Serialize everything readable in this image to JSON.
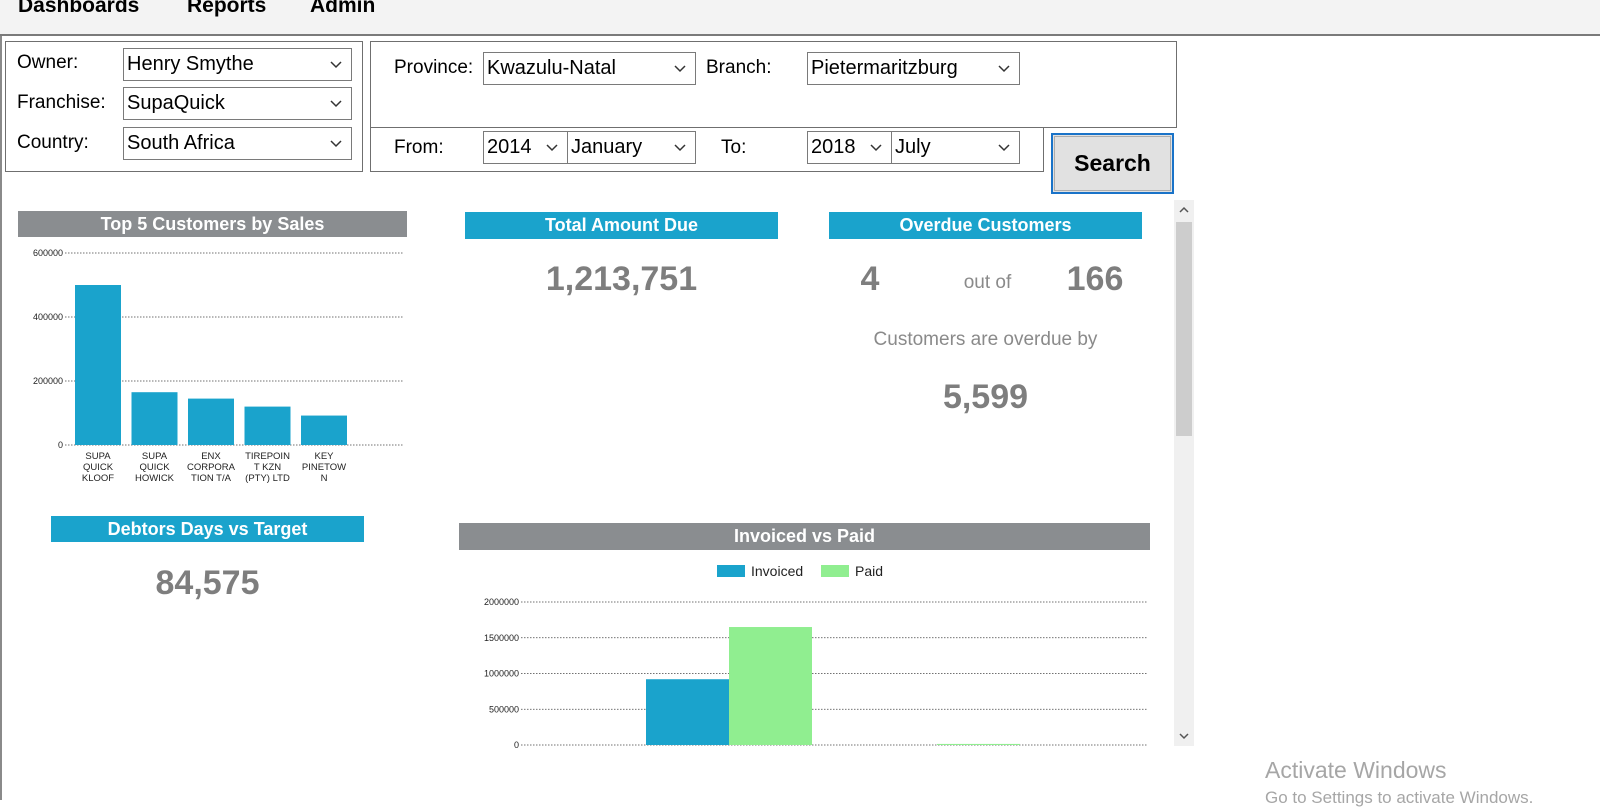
{
  "menu": {
    "items": [
      {
        "label": "Dashboards"
      },
      {
        "label": "Reports"
      },
      {
        "label": "Admin"
      }
    ]
  },
  "filters": {
    "owner_label": "Owner:",
    "owner_value": "Henry Smythe",
    "franchise_label": "Franchise:",
    "franchise_value": "SupaQuick",
    "country_label": "Country:",
    "country_value": "South Africa",
    "province_label": "Province:",
    "province_value": "Kwazulu-Natal",
    "branch_label": "Branch:",
    "branch_value": "Pietermaritzburg",
    "from_label": "From:",
    "from_year": "2014",
    "from_month": "January",
    "to_label": "To:",
    "to_year": "2018",
    "to_month": "July",
    "search_label": "Search"
  },
  "cards": {
    "top5_title": "Top 5 Customers by Sales",
    "total_due_title": "Total Amount Due",
    "total_due_value": "1,213,751",
    "overdue_title": "Overdue Customers",
    "overdue_count": "4",
    "overdue_out_of": "out of",
    "overdue_total": "166",
    "overdue_caption": "Customers are overdue by",
    "overdue_value": "5,599",
    "debtors_title": "Debtors Days vs Target",
    "debtors_value": "84,575",
    "invoiced_title": "Invoiced vs Paid"
  },
  "colors": {
    "blue": "#1aa3cc",
    "green": "#90ee90",
    "gray_header": "#8a8d90"
  },
  "chart_data": [
    {
      "type": "bar",
      "title": "Top 5 Customers by Sales",
      "categories": [
        [
          "SUPA",
          "QUICK",
          "KLOOF"
        ],
        [
          "SUPA",
          "QUICK",
          "HOWICK"
        ],
        [
          "ENX",
          "CORPORA",
          "TION T/A"
        ],
        [
          "TIREPOIN",
          "T KZN",
          "(PTY) LTD"
        ],
        [
          "KEY",
          "PINETOW",
          "N"
        ]
      ],
      "values": [
        500000,
        165000,
        145000,
        120000,
        92000
      ],
      "yticks": [
        "0",
        "200000",
        "400000",
        "600000"
      ],
      "ylim": [
        0,
        600000
      ],
      "grid": true
    },
    {
      "type": "bar",
      "title": "Invoiced vs Paid",
      "legend": [
        "Invoiced",
        "Paid"
      ],
      "legend_position": "top",
      "series": [
        {
          "name": "Invoiced",
          "values": [
            920000,
            0
          ]
        },
        {
          "name": "Paid",
          "values": [
            1650000,
            15000
          ]
        }
      ],
      "yticks": [
        "0",
        "500000",
        "1000000",
        "1500000",
        "2000000"
      ],
      "ylim": [
        0,
        2000000
      ],
      "grid": true
    }
  ],
  "watermark": {
    "line1": "Activate Windows",
    "line2": "Go to Settings to activate Windows."
  }
}
